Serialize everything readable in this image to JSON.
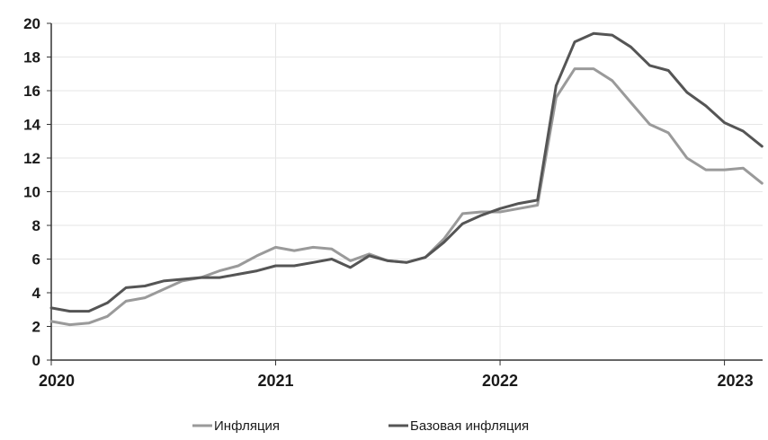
{
  "chart_data": {
    "type": "line",
    "title": "",
    "xlabel": "",
    "ylabel": "",
    "ylim": [
      0,
      20
    ],
    "yticks": [
      "0",
      "2",
      "4",
      "6",
      "8",
      "10",
      "12",
      "14",
      "16",
      "18",
      "20"
    ],
    "xticks": [
      "2020",
      "2021",
      "2022",
      "2023"
    ],
    "xlim": [
      2020.0,
      2023.17
    ],
    "grid": true,
    "legend_position": "bottom",
    "series": [
      {
        "name": "Инфляция",
        "color": "#9a9a9a",
        "x": [
          2020.0,
          2020.083,
          2020.167,
          2020.25,
          2020.333,
          2020.417,
          2020.5,
          2020.583,
          2020.667,
          2020.75,
          2020.833,
          2020.917,
          2021.0,
          2021.083,
          2021.167,
          2021.25,
          2021.333,
          2021.417,
          2021.5,
          2021.583,
          2021.667,
          2021.75,
          2021.833,
          2021.917,
          2022.0,
          2022.083,
          2022.167,
          2022.25,
          2022.333,
          2022.417,
          2022.5,
          2022.583,
          2022.667,
          2022.75,
          2022.833,
          2022.917,
          2023.0,
          2023.083,
          2023.167
        ],
        "values": [
          2.3,
          2.1,
          2.2,
          2.6,
          3.5,
          3.7,
          4.2,
          4.7,
          4.9,
          5.3,
          5.6,
          6.2,
          6.7,
          6.5,
          6.7,
          6.6,
          5.9,
          6.3,
          5.9,
          5.8,
          6.1,
          7.2,
          8.7,
          8.8,
          8.8,
          9.0,
          9.2,
          15.6,
          17.3,
          17.3,
          16.6,
          15.3,
          14.0,
          13.5,
          12.0,
          11.3,
          11.3,
          11.4,
          10.5
        ]
      },
      {
        "name": "Базовая инфляция",
        "color": "#555555",
        "x": [
          2020.0,
          2020.083,
          2020.167,
          2020.25,
          2020.333,
          2020.417,
          2020.5,
          2020.583,
          2020.667,
          2020.75,
          2020.833,
          2020.917,
          2021.0,
          2021.083,
          2021.167,
          2021.25,
          2021.333,
          2021.417,
          2021.5,
          2021.583,
          2021.667,
          2021.75,
          2021.833,
          2021.917,
          2022.0,
          2022.083,
          2022.167,
          2022.25,
          2022.333,
          2022.417,
          2022.5,
          2022.583,
          2022.667,
          2022.75,
          2022.833,
          2022.917,
          2023.0,
          2023.083,
          2023.167
        ],
        "values": [
          3.1,
          2.9,
          2.9,
          3.4,
          4.3,
          4.4,
          4.7,
          4.8,
          4.9,
          4.9,
          5.1,
          5.3,
          5.6,
          5.6,
          5.8,
          6.0,
          5.5,
          6.2,
          5.9,
          5.8,
          6.1,
          7.0,
          8.1,
          8.6,
          9.0,
          9.3,
          9.5,
          16.3,
          18.9,
          19.4,
          19.3,
          18.6,
          17.5,
          17.2,
          15.9,
          15.1,
          14.1,
          13.6,
          12.7
        ]
      }
    ]
  }
}
